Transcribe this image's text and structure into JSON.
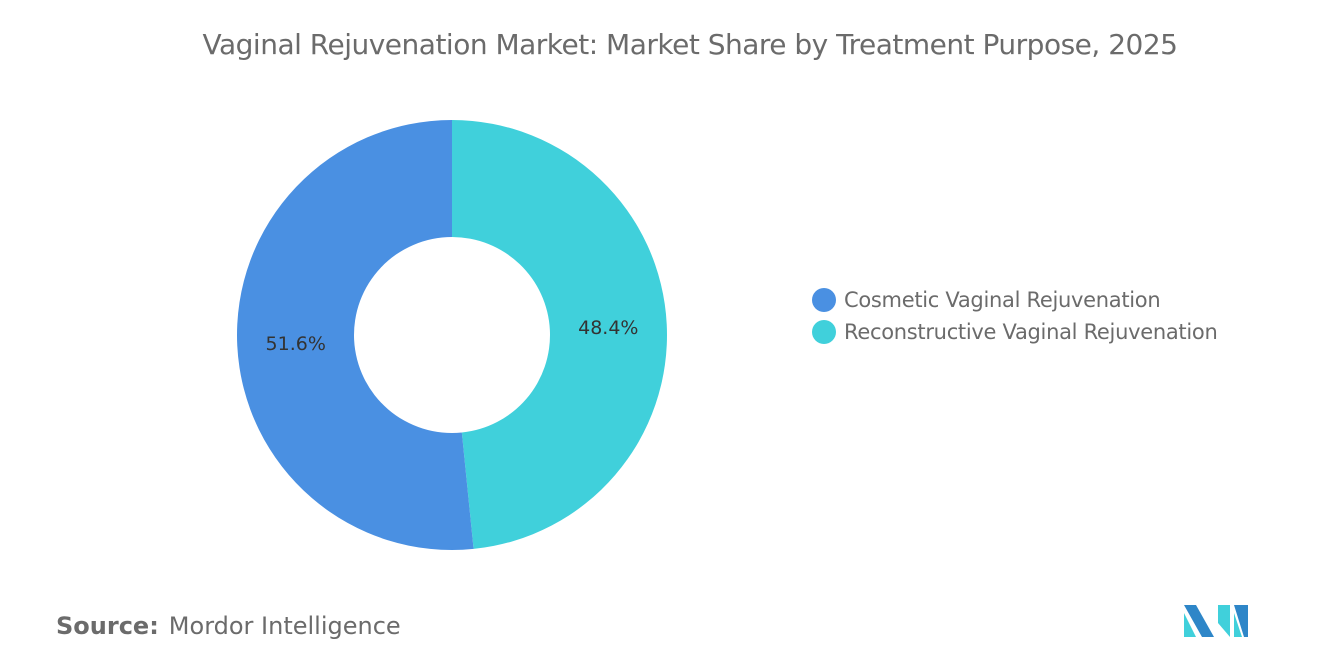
{
  "chart_data": {
    "type": "pie",
    "variant": "donut",
    "title": "Vaginal Rejuvenation Market: Market Share by Treatment Purpose, 2025",
    "series": [
      {
        "name": "Reconstructive Vaginal Rejuvenation",
        "value": 48.4,
        "label": "48.4%",
        "color": "#40D0DB"
      },
      {
        "name": "Cosmetic Vaginal Rejuvenation",
        "value": 51.6,
        "label": "51.6%",
        "color": "#4A90E2"
      }
    ],
    "legend": {
      "placement": "right",
      "items": [
        "Cosmetic Vaginal Rejuvenation",
        "Reconstructive Vaginal Rejuvenation"
      ]
    }
  },
  "source": {
    "label": "Source:",
    "value": "Mordor Intelligence"
  },
  "logo": {
    "name": "mordor-intelligence-logo",
    "colors": [
      "#2E86C8",
      "#40D0DB"
    ]
  }
}
